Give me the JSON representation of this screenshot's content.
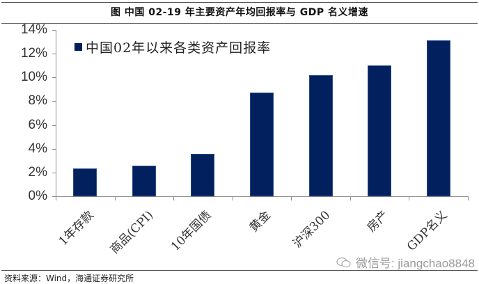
{
  "figure": {
    "title": "图  中国 02-19 年主要资产年均回报率与 GDP 名义增速",
    "source": "资料来源：Wind，海通证券研究所",
    "watermark": "微信号: jiangchao8848"
  },
  "colors": {
    "bar": "#03205e",
    "axis": "#8a8a8a"
  },
  "legend": {
    "label": "中国02年以来各类资产回报率"
  },
  "axis": {
    "y_ticks": [
      "14%",
      "12%",
      "10%",
      "8%",
      "6%",
      "4%",
      "2%",
      "0%"
    ]
  },
  "categories": [
    "1年存款",
    "商品(CPI)",
    "10年国债",
    "黄金",
    "沪深300",
    "房产",
    "GDP名义"
  ],
  "chart_data": {
    "type": "bar",
    "title": "图 中国 02-19 年主要资产年均回报率与 GDP 名义增速",
    "categories": [
      "1年存款",
      "商品(CPI)",
      "10年国债",
      "黄金",
      "沪深300",
      "房产",
      "GDP名义"
    ],
    "series": [
      {
        "name": "中国02年以来各类资产回报率",
        "values": [
          2.35,
          2.6,
          3.6,
          8.7,
          10.2,
          11.0,
          13.1
        ]
      }
    ],
    "xlabel": "",
    "ylabel": "",
    "ylim": [
      0,
      14
    ],
    "y_ticks": [
      0,
      2,
      4,
      6,
      8,
      10,
      12,
      14
    ],
    "y_format": "percent",
    "grid": false,
    "legend_position": "top-left-inside"
  }
}
